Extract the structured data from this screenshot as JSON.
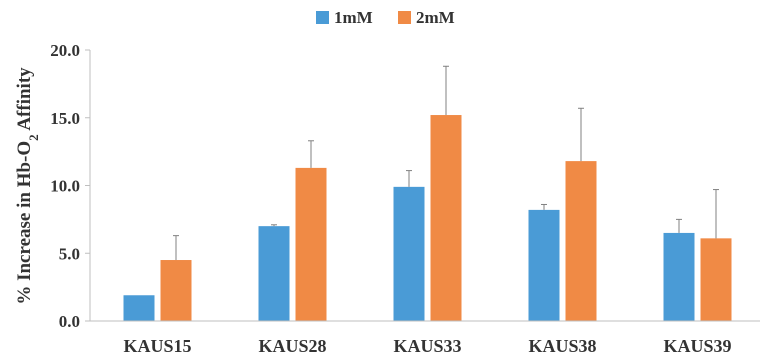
{
  "chart_data": {
    "type": "bar",
    "categories": [
      "KAUS15",
      "KAUS28",
      "KAUS33",
      "KAUS38",
      "KAUS39"
    ],
    "series": [
      {
        "name": "1mM",
        "color": "#4a9bd6",
        "values": [
          1.9,
          7.0,
          9.9,
          8.2,
          6.5
        ],
        "errors": [
          0.0,
          0.1,
          1.2,
          0.4,
          1.0
        ]
      },
      {
        "name": "2mM",
        "color": "#f08a45",
        "values": [
          4.5,
          11.3,
          15.2,
          11.8,
          6.1
        ],
        "errors": [
          1.8,
          2.0,
          3.6,
          3.9,
          3.6
        ]
      }
    ],
    "ylabel": {
      "main": "% Increase in Hb-O",
      "subscript": "2",
      "suffix": " Affinity"
    },
    "ylim": [
      0,
      20
    ],
    "yticks": [
      "0.0",
      "5.0",
      "10.0",
      "15.0",
      "20.0"
    ],
    "legend_position": "top-center",
    "grid": false,
    "error_bars": true
  }
}
